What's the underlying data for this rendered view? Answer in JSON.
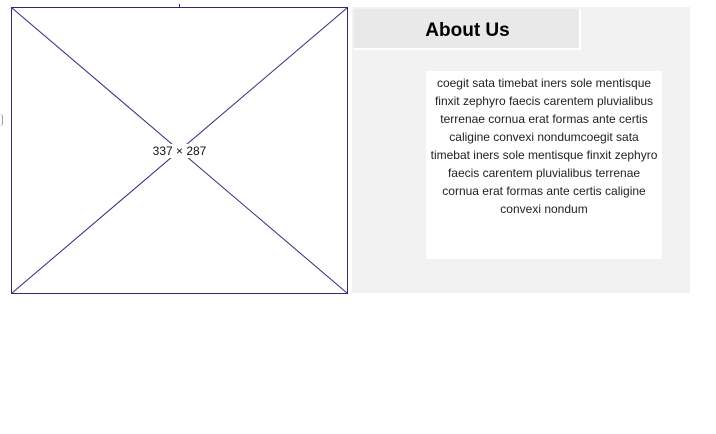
{
  "image_placeholder": {
    "size_label": "337 × 287",
    "border_color": "#2e2a7a"
  },
  "about": {
    "title": "About Us",
    "body": "coegit sata timebat iners sole mentisque finxit zephyro faecis carentem pluvialibus terrenae cornua erat formas ante certis caligine convexi nondumcoegit sata timebat iners sole mentisque finxit zephyro faecis carentem pluvialibus terrenae cornua erat formas ante certis caligine convexi nondum",
    "panel_color": "#f2f2f2",
    "header_color": "#e9e9e9"
  }
}
